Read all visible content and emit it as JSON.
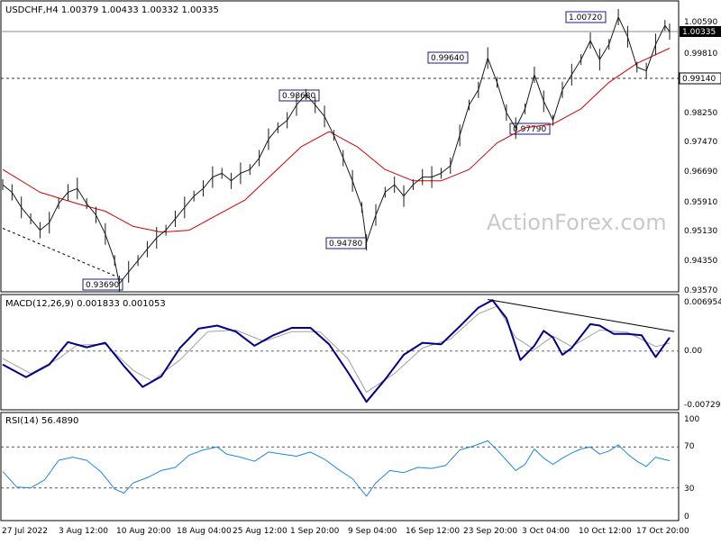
{
  "chart_data": [
    {
      "type": "line",
      "title": "USDCHF,H4 1.00379 1.00433 1.00332 1.00335",
      "watermark": "ActionForex.com",
      "x_labels": [
        "27 Jul 2022",
        "3 Aug 12:00",
        "10 Aug 20:00",
        "18 Aug 04:00",
        "25 Aug 12:00",
        "1 Sep 20:00",
        "9 Sep 04:00",
        "16 Sep 12:00",
        "23 Sep 20:00",
        "3 Oct 04:00",
        "10 Oct 12:00",
        "17 Oct 20:00"
      ],
      "y_ticks": [
        "1.00590",
        "0.99810",
        "0.98250",
        "0.97470",
        "0.96690",
        "0.95910",
        "0.95130",
        "0.94350",
        "0.93570"
      ],
      "ylim": [
        0.9357,
        1.0098
      ],
      "current_price": "1.00335",
      "level_label": "0.99140",
      "swing_labels": [
        "0.93690",
        "0.98680",
        "0.94780",
        "0.99640",
        "0.97790",
        "1.00720"
      ],
      "price_series": [
        {
          "x": 0,
          "y": 0.963
        },
        {
          "x": 2,
          "y": 0.961
        },
        {
          "x": 4,
          "y": 0.957
        },
        {
          "x": 6,
          "y": 0.954
        },
        {
          "x": 8,
          "y": 0.951
        },
        {
          "x": 10,
          "y": 0.953
        },
        {
          "x": 12,
          "y": 0.958
        },
        {
          "x": 14,
          "y": 0.961
        },
        {
          "x": 16,
          "y": 0.962
        },
        {
          "x": 18,
          "y": 0.958
        },
        {
          "x": 20,
          "y": 0.955
        },
        {
          "x": 22,
          "y": 0.95
        },
        {
          "x": 24,
          "y": 0.943
        },
        {
          "x": 25,
          "y": 0.9369
        },
        {
          "x": 27,
          "y": 0.94
        },
        {
          "x": 29,
          "y": 0.943
        },
        {
          "x": 31,
          "y": 0.946
        },
        {
          "x": 33,
          "y": 0.949
        },
        {
          "x": 35,
          "y": 0.951
        },
        {
          "x": 37,
          "y": 0.954
        },
        {
          "x": 39,
          "y": 0.957
        },
        {
          "x": 41,
          "y": 0.96
        },
        {
          "x": 43,
          "y": 0.962
        },
        {
          "x": 45,
          "y": 0.965
        },
        {
          "x": 47,
          "y": 0.966
        },
        {
          "x": 49,
          "y": 0.964
        },
        {
          "x": 51,
          "y": 0.966
        },
        {
          "x": 53,
          "y": 0.967
        },
        {
          "x": 55,
          "y": 0.97
        },
        {
          "x": 57,
          "y": 0.975
        },
        {
          "x": 59,
          "y": 0.978
        },
        {
          "x": 61,
          "y": 0.98
        },
        {
          "x": 63,
          "y": 0.984
        },
        {
          "x": 65,
          "y": 0.9868
        },
        {
          "x": 67,
          "y": 0.984
        },
        {
          "x": 69,
          "y": 0.981
        },
        {
          "x": 71,
          "y": 0.976
        },
        {
          "x": 73,
          "y": 0.97
        },
        {
          "x": 75,
          "y": 0.964
        },
        {
          "x": 77,
          "y": 0.957
        },
        {
          "x": 78,
          "y": 0.9478
        },
        {
          "x": 80,
          "y": 0.955
        },
        {
          "x": 82,
          "y": 0.961
        },
        {
          "x": 84,
          "y": 0.963
        },
        {
          "x": 86,
          "y": 0.96
        },
        {
          "x": 88,
          "y": 0.963
        },
        {
          "x": 90,
          "y": 0.965
        },
        {
          "x": 92,
          "y": 0.965
        },
        {
          "x": 94,
          "y": 0.966
        },
        {
          "x": 96,
          "y": 0.968
        },
        {
          "x": 98,
          "y": 0.976
        },
        {
          "x": 100,
          "y": 0.984
        },
        {
          "x": 102,
          "y": 0.988
        },
        {
          "x": 104,
          "y": 0.9964
        },
        {
          "x": 106,
          "y": 0.99
        },
        {
          "x": 108,
          "y": 0.982
        },
        {
          "x": 110,
          "y": 0.9779
        },
        {
          "x": 112,
          "y": 0.983
        },
        {
          "x": 114,
          "y": 0.992
        },
        {
          "x": 116,
          "y": 0.985
        },
        {
          "x": 118,
          "y": 0.98
        },
        {
          "x": 120,
          "y": 0.988
        },
        {
          "x": 122,
          "y": 0.992
        },
        {
          "x": 124,
          "y": 0.996
        },
        {
          "x": 126,
          "y": 1.001
        },
        {
          "x": 128,
          "y": 0.996
        },
        {
          "x": 130,
          "y": 1.0
        },
        {
          "x": 132,
          "y": 1.0072
        },
        {
          "x": 134,
          "y": 1.002
        },
        {
          "x": 136,
          "y": 0.994
        },
        {
          "x": 138,
          "y": 0.993
        },
        {
          "x": 140,
          "y": 1.0
        },
        {
          "x": 142,
          "y": 1.005
        },
        {
          "x": 143,
          "y": 1.00335
        }
      ],
      "ma_series": [
        {
          "x": 0,
          "y": 0.967
        },
        {
          "x": 8,
          "y": 0.961
        },
        {
          "x": 16,
          "y": 0.958
        },
        {
          "x": 22,
          "y": 0.956
        },
        {
          "x": 28,
          "y": 0.952
        },
        {
          "x": 34,
          "y": 0.9505
        },
        {
          "x": 40,
          "y": 0.951
        },
        {
          "x": 46,
          "y": 0.955
        },
        {
          "x": 52,
          "y": 0.959
        },
        {
          "x": 58,
          "y": 0.966
        },
        {
          "x": 64,
          "y": 0.973
        },
        {
          "x": 70,
          "y": 0.977
        },
        {
          "x": 76,
          "y": 0.973
        },
        {
          "x": 82,
          "y": 0.967
        },
        {
          "x": 88,
          "y": 0.964
        },
        {
          "x": 94,
          "y": 0.964
        },
        {
          "x": 100,
          "y": 0.967
        },
        {
          "x": 106,
          "y": 0.974
        },
        {
          "x": 112,
          "y": 0.978
        },
        {
          "x": 118,
          "y": 0.979
        },
        {
          "x": 124,
          "y": 0.983
        },
        {
          "x": 130,
          "y": 0.99
        },
        {
          "x": 136,
          "y": 0.995
        },
        {
          "x": 143,
          "y": 0.999
        }
      ],
      "trendline": {
        "from": {
          "x": 0,
          "y": 0.9515
        },
        "to": {
          "x": 24,
          "y": 0.939
        }
      },
      "colors": {
        "ma": "#d40000",
        "price": "#1a1a1a",
        "label_border": "#1a1a8c",
        "current_bg": "#000000"
      }
    },
    {
      "type": "line",
      "title": "MACD(12,26,9) 0.001833 0.001053",
      "y_ticks": [
        "0.006954",
        "0.00",
        "-0.007294"
      ],
      "ylim": [
        -0.0075,
        0.0072
      ],
      "macd_series": [
        {
          "x": 0,
          "y": -0.0018
        },
        {
          "x": 5,
          "y": -0.0035
        },
        {
          "x": 10,
          "y": -0.0018
        },
        {
          "x": 14,
          "y": 0.0012
        },
        {
          "x": 18,
          "y": 0.0005
        },
        {
          "x": 22,
          "y": 0.0011
        },
        {
          "x": 26,
          "y": -0.002
        },
        {
          "x": 30,
          "y": -0.0048
        },
        {
          "x": 34,
          "y": -0.0034
        },
        {
          "x": 38,
          "y": 0.0004
        },
        {
          "x": 42,
          "y": 0.003
        },
        {
          "x": 46,
          "y": 0.0034
        },
        {
          "x": 50,
          "y": 0.0026
        },
        {
          "x": 54,
          "y": 0.0007
        },
        {
          "x": 58,
          "y": 0.0021
        },
        {
          "x": 62,
          "y": 0.0031
        },
        {
          "x": 66,
          "y": 0.0031
        },
        {
          "x": 70,
          "y": 0.0009
        },
        {
          "x": 74,
          "y": -0.0028
        },
        {
          "x": 78,
          "y": -0.0068
        },
        {
          "x": 82,
          "y": -0.0038
        },
        {
          "x": 86,
          "y": -0.0005
        },
        {
          "x": 90,
          "y": 0.0011
        },
        {
          "x": 94,
          "y": 0.0009
        },
        {
          "x": 98,
          "y": 0.0033
        },
        {
          "x": 102,
          "y": 0.0058
        },
        {
          "x": 105,
          "y": 0.0068
        },
        {
          "x": 108,
          "y": 0.0044
        },
        {
          "x": 111,
          "y": -0.0012
        },
        {
          "x": 114,
          "y": 0.0007
        },
        {
          "x": 116,
          "y": 0.0027
        },
        {
          "x": 118,
          "y": 0.0018
        },
        {
          "x": 120,
          "y": -0.0005
        },
        {
          "x": 122,
          "y": 0.0004
        },
        {
          "x": 126,
          "y": 0.0036
        },
        {
          "x": 128,
          "y": 0.0034
        },
        {
          "x": 131,
          "y": 0.0023
        },
        {
          "x": 134,
          "y": 0.0023
        },
        {
          "x": 137,
          "y": 0.0021
        },
        {
          "x": 140,
          "y": -0.0008
        },
        {
          "x": 143,
          "y": 0.0018
        }
      ],
      "signal_series": [
        {
          "x": 0,
          "y": -0.001
        },
        {
          "x": 6,
          "y": -0.003
        },
        {
          "x": 12,
          "y": -0.001
        },
        {
          "x": 16,
          "y": 0.0008
        },
        {
          "x": 22,
          "y": 0.0009
        },
        {
          "x": 28,
          "y": -0.0026
        },
        {
          "x": 32,
          "y": -0.004
        },
        {
          "x": 38,
          "y": -0.0012
        },
        {
          "x": 44,
          "y": 0.0026
        },
        {
          "x": 50,
          "y": 0.0028
        },
        {
          "x": 56,
          "y": 0.0013
        },
        {
          "x": 62,
          "y": 0.0026
        },
        {
          "x": 68,
          "y": 0.0026
        },
        {
          "x": 74,
          "y": -0.001
        },
        {
          "x": 78,
          "y": -0.0055
        },
        {
          "x": 84,
          "y": -0.003
        },
        {
          "x": 90,
          "y": 0.0004
        },
        {
          "x": 96,
          "y": 0.0016
        },
        {
          "x": 102,
          "y": 0.005
        },
        {
          "x": 106,
          "y": 0.006
        },
        {
          "x": 110,
          "y": 0.0018
        },
        {
          "x": 114,
          "y": 0.0002
        },
        {
          "x": 118,
          "y": 0.002
        },
        {
          "x": 122,
          "y": 0.0006
        },
        {
          "x": 128,
          "y": 0.0028
        },
        {
          "x": 134,
          "y": 0.0025
        },
        {
          "x": 140,
          "y": 0.0006
        },
        {
          "x": 143,
          "y": 0.00105
        }
      ],
      "trendline": {
        "from": {
          "x": 104,
          "y": 0.0069
        },
        "to": {
          "x": 144,
          "y": 0.0026
        }
      },
      "colors": {
        "macd": "#00008b",
        "signal": "#a0a0a0"
      }
    },
    {
      "type": "line",
      "title": "RSI(14) 56.4890",
      "y_ticks": [
        "100",
        "70",
        "30",
        "0"
      ],
      "ylim": [
        0,
        100
      ],
      "levels": [
        70,
        30
      ],
      "rsi_series": [
        {
          "x": 0,
          "y": 46
        },
        {
          "x": 3,
          "y": 31
        },
        {
          "x": 6,
          "y": 30
        },
        {
          "x": 9,
          "y": 38
        },
        {
          "x": 12,
          "y": 57
        },
        {
          "x": 15,
          "y": 60
        },
        {
          "x": 18,
          "y": 57
        },
        {
          "x": 21,
          "y": 46
        },
        {
          "x": 24,
          "y": 29
        },
        {
          "x": 26,
          "y": 25
        },
        {
          "x": 28,
          "y": 35
        },
        {
          "x": 31,
          "y": 40
        },
        {
          "x": 34,
          "y": 47
        },
        {
          "x": 37,
          "y": 50
        },
        {
          "x": 40,
          "y": 62
        },
        {
          "x": 43,
          "y": 67
        },
        {
          "x": 46,
          "y": 70
        },
        {
          "x": 48,
          "y": 63
        },
        {
          "x": 51,
          "y": 60
        },
        {
          "x": 54,
          "y": 56
        },
        {
          "x": 57,
          "y": 65
        },
        {
          "x": 60,
          "y": 63
        },
        {
          "x": 63,
          "y": 61
        },
        {
          "x": 66,
          "y": 65
        },
        {
          "x": 69,
          "y": 58
        },
        {
          "x": 72,
          "y": 48
        },
        {
          "x": 75,
          "y": 39
        },
        {
          "x": 78,
          "y": 22
        },
        {
          "x": 80,
          "y": 35
        },
        {
          "x": 83,
          "y": 47
        },
        {
          "x": 86,
          "y": 45
        },
        {
          "x": 89,
          "y": 50
        },
        {
          "x": 92,
          "y": 49
        },
        {
          "x": 95,
          "y": 52
        },
        {
          "x": 98,
          "y": 67
        },
        {
          "x": 101,
          "y": 71
        },
        {
          "x": 104,
          "y": 76
        },
        {
          "x": 106,
          "y": 67
        },
        {
          "x": 108,
          "y": 57
        },
        {
          "x": 110,
          "y": 47
        },
        {
          "x": 112,
          "y": 53
        },
        {
          "x": 114,
          "y": 68
        },
        {
          "x": 116,
          "y": 59
        },
        {
          "x": 118,
          "y": 53
        },
        {
          "x": 120,
          "y": 59
        },
        {
          "x": 122,
          "y": 64
        },
        {
          "x": 124,
          "y": 68
        },
        {
          "x": 126,
          "y": 70
        },
        {
          "x": 128,
          "y": 63
        },
        {
          "x": 130,
          "y": 66
        },
        {
          "x": 132,
          "y": 72
        },
        {
          "x": 134,
          "y": 63
        },
        {
          "x": 136,
          "y": 56
        },
        {
          "x": 138,
          "y": 51
        },
        {
          "x": 140,
          "y": 60
        },
        {
          "x": 143,
          "y": 56.5
        }
      ],
      "colors": {
        "rsi": "#1e88e5",
        "levels": "#555555"
      }
    }
  ]
}
